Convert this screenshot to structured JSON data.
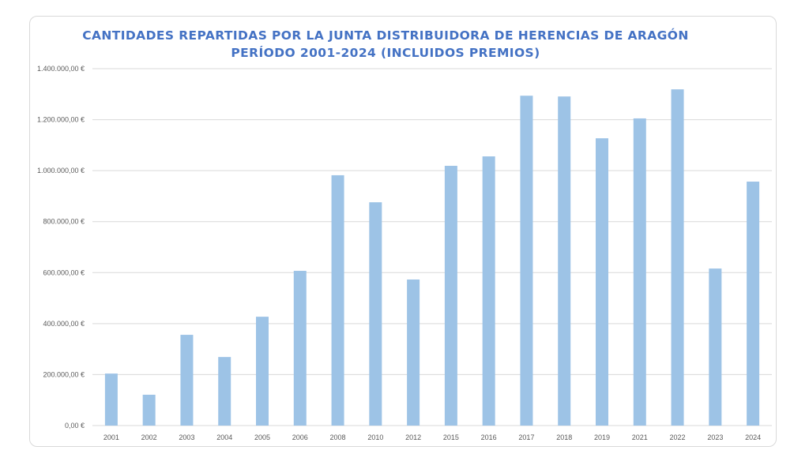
{
  "chart_data": {
    "type": "bar",
    "title": "CANTIDADES REPARTIDAS POR LA JUNTA DISTRIBUIDORA DE HERENCIAS DE ARAGÓN",
    "subtitle": "PERÍODO 2001-2024 (INCLUIDOS PREMIOS)",
    "xlabel": "",
    "ylabel": "",
    "ylim": [
      0,
      1400000
    ],
    "ytick_values": [
      0,
      200000,
      400000,
      600000,
      800000,
      1000000,
      1200000,
      1400000
    ],
    "ytick_labels": [
      "0,00 €",
      "200.000,00 €",
      "400.000,00 €",
      "600.000,00 €",
      "800.000,00 €",
      "1.000.000,00 €",
      "1.200.000,00 €",
      "1.400.000,00 €"
    ],
    "grid": true,
    "legend": "none",
    "bar_color": "#9dc3e6",
    "title_color": "#4472c4",
    "categories": [
      "2001",
      "2002",
      "2003",
      "2004",
      "2005",
      "2006",
      "2008",
      "2010",
      "2012",
      "2015",
      "2016",
      "2017",
      "2018",
      "2019",
      "2021",
      "2022",
      "2023",
      "2024"
    ],
    "values": [
      204000,
      121000,
      356000,
      269000,
      427000,
      607000,
      982000,
      876000,
      573000,
      1019000,
      1056000,
      1294000,
      1291000,
      1127000,
      1205000,
      1319000,
      616000,
      957000
    ]
  }
}
